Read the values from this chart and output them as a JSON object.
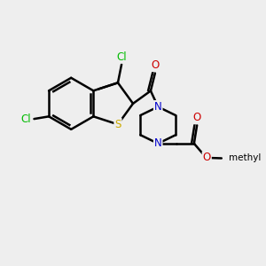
{
  "bg_color": "#eeeeee",
  "bond_color": "#000000",
  "bond_width": 1.8,
  "dbo": 0.055,
  "atom_colors": {
    "Cl": "#00bb00",
    "S": "#ccaa00",
    "N": "#0000cc",
    "O": "#cc0000",
    "C": "#000000"
  },
  "figsize": [
    3.0,
    3.0
  ],
  "dpi": 100
}
